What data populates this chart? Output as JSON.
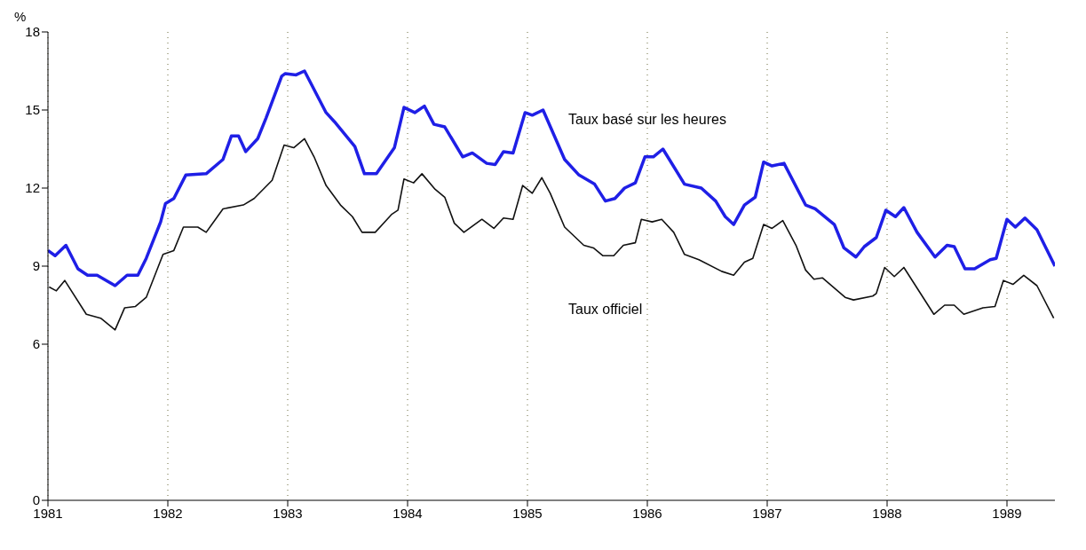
{
  "chart_data": {
    "type": "line",
    "ylabel": "%",
    "xlim": [
      1981,
      1989.4
    ],
    "xticks": [
      1981,
      1982,
      1983,
      1984,
      1985,
      1986,
      1987,
      1988,
      1989
    ],
    "ylim": [
      0,
      18
    ],
    "yticks": [
      0,
      6,
      9,
      12,
      15,
      18
    ],
    "grid": "x",
    "legend": false,
    "marker": "none",
    "line_style": "solid",
    "annotations": [
      "Taux basé sur les heures",
      "Taux officiel"
    ],
    "series": [
      {
        "color": "#1f1fe6",
        "x": [
          1981.0,
          1981.06,
          1981.15,
          1981.25,
          1981.33,
          1981.41,
          1981.56,
          1981.66,
          1981.75,
          1981.82,
          1981.94,
          1981.98,
          1982.05,
          1982.15,
          1982.32,
          1982.46,
          1982.53,
          1982.59,
          1982.65,
          1982.75,
          1982.82,
          1982.95,
          1982.98,
          1983.07,
          1983.14,
          1983.32,
          1983.39,
          1983.56,
          1983.64,
          1983.74,
          1983.89,
          1983.97,
          1984.06,
          1984.14,
          1984.22,
          1984.31,
          1984.46,
          1984.54,
          1984.66,
          1984.73,
          1984.8,
          1984.88,
          1984.98,
          1985.04,
          1985.13,
          1985.31,
          1985.43,
          1985.56,
          1985.65,
          1985.73,
          1985.81,
          1985.9,
          1985.98,
          1986.05,
          1986.13,
          1986.31,
          1986.45,
          1986.57,
          1986.65,
          1986.72,
          1986.81,
          1986.9,
          1986.97,
          1987.04,
          1987.14,
          1987.32,
          1987.4,
          1987.56,
          1987.64,
          1987.74,
          1987.81,
          1987.91,
          1987.99,
          1988.07,
          1988.14,
          1988.25,
          1988.4,
          1988.5,
          1988.56,
          1988.65,
          1988.73,
          1988.86,
          1988.91,
          1989.0,
          1989.07,
          1989.15,
          1989.25,
          1989.4
        ],
        "values": [
          9.6,
          9.4,
          9.8,
          8.9,
          8.65,
          8.65,
          8.25,
          8.65,
          8.65,
          9.3,
          10.7,
          11.4,
          11.6,
          12.5,
          12.55,
          13.1,
          14.0,
          14.0,
          13.4,
          13.9,
          14.7,
          16.3,
          16.4,
          16.35,
          16.5,
          14.9,
          14.55,
          13.6,
          12.55,
          12.55,
          13.55,
          15.1,
          14.9,
          15.15,
          14.45,
          14.35,
          13.2,
          13.35,
          12.95,
          12.9,
          13.4,
          13.35,
          14.9,
          14.8,
          15.0,
          13.1,
          12.5,
          12.15,
          11.5,
          11.6,
          12.0,
          12.2,
          13.2,
          13.2,
          13.5,
          12.15,
          12.0,
          11.5,
          10.9,
          10.6,
          11.35,
          11.65,
          13.0,
          12.85,
          12.95,
          11.35,
          11.2,
          10.6,
          9.7,
          9.35,
          9.75,
          10.1,
          11.15,
          10.9,
          11.25,
          10.3,
          9.35,
          9.8,
          9.75,
          8.9,
          8.9,
          9.25,
          9.3,
          10.8,
          10.5,
          10.85,
          10.4,
          9.0
        ]
      },
      {
        "color": "#111111",
        "x": [
          1981.01,
          1981.07,
          1981.14,
          1981.32,
          1981.44,
          1981.56,
          1981.64,
          1981.73,
          1981.82,
          1981.96,
          1982.05,
          1982.13,
          1982.25,
          1982.32,
          1982.46,
          1982.63,
          1982.72,
          1982.87,
          1982.97,
          1983.05,
          1983.14,
          1983.22,
          1983.32,
          1983.44,
          1983.54,
          1983.62,
          1983.73,
          1983.87,
          1983.92,
          1983.97,
          1984.05,
          1984.12,
          1984.23,
          1984.31,
          1984.39,
          1984.47,
          1984.62,
          1984.72,
          1984.8,
          1984.88,
          1984.96,
          1985.04,
          1985.12,
          1985.19,
          1985.31,
          1985.47,
          1985.55,
          1985.63,
          1985.72,
          1985.8,
          1985.9,
          1985.95,
          1986.04,
          1986.12,
          1986.22,
          1986.31,
          1986.43,
          1986.62,
          1986.72,
          1986.81,
          1986.88,
          1986.97,
          1987.04,
          1987.13,
          1987.24,
          1987.32,
          1987.39,
          1987.46,
          1987.65,
          1987.72,
          1987.88,
          1987.91,
          1987.98,
          1988.06,
          1988.14,
          1988.39,
          1988.48,
          1988.56,
          1988.64,
          1988.8,
          1988.9,
          1988.97,
          1989.05,
          1989.14,
          1989.25,
          1989.39
        ],
        "values": [
          8.2,
          8.05,
          8.45,
          7.15,
          7.0,
          6.55,
          7.4,
          7.45,
          7.8,
          9.45,
          9.6,
          10.5,
          10.5,
          10.3,
          11.2,
          11.35,
          11.6,
          12.3,
          13.65,
          13.55,
          13.9,
          13.2,
          12.1,
          11.35,
          10.9,
          10.3,
          10.3,
          11.0,
          11.15,
          12.35,
          12.2,
          12.55,
          11.95,
          11.65,
          10.65,
          10.3,
          10.8,
          10.45,
          10.85,
          10.8,
          12.1,
          11.8,
          12.4,
          11.8,
          10.5,
          9.8,
          9.7,
          9.4,
          9.4,
          9.8,
          9.9,
          10.8,
          10.7,
          10.8,
          10.3,
          9.45,
          9.25,
          8.8,
          8.65,
          9.15,
          9.3,
          10.6,
          10.45,
          10.75,
          9.8,
          8.85,
          8.5,
          8.55,
          7.8,
          7.7,
          7.85,
          7.95,
          8.95,
          8.6,
          8.95,
          7.15,
          7.5,
          7.5,
          7.15,
          7.4,
          7.45,
          8.45,
          8.3,
          8.65,
          8.25,
          7.0
        ]
      }
    ]
  }
}
